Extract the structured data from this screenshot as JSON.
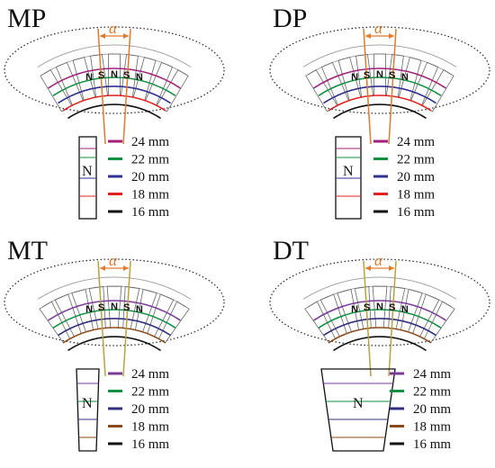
{
  "panels": [
    {
      "id": "mp",
      "title": "MP",
      "alpha": "α",
      "style": "rect",
      "poles": [
        "N",
        "S",
        "N",
        "S",
        "N"
      ],
      "magnet_label": "N",
      "legend": [
        {
          "label": "24 mm",
          "color": "#a0207a"
        },
        {
          "label": "22 mm",
          "color": "#109040"
        },
        {
          "label": "20 mm",
          "color": "#303090"
        },
        {
          "label": "18 mm",
          "color": "#e02020"
        },
        {
          "label": "16 mm",
          "color": "#111111"
        }
      ]
    },
    {
      "id": "dp",
      "title": "DP",
      "alpha": "α",
      "style": "rect-offset",
      "poles": [
        "N",
        "S",
        "N",
        "S",
        "N"
      ],
      "magnet_label": "N",
      "legend": [
        {
          "label": "24 mm",
          "color": "#a0207a"
        },
        {
          "label": "22 mm",
          "color": "#109040"
        },
        {
          "label": "20 mm",
          "color": "#303090"
        },
        {
          "label": "18 mm",
          "color": "#e02020"
        },
        {
          "label": "16 mm",
          "color": "#111111"
        }
      ]
    },
    {
      "id": "mt",
      "title": "MT",
      "alpha": "α",
      "style": "trap",
      "poles": [
        "N",
        "S",
        "N",
        "S",
        "N"
      ],
      "magnet_label": "N",
      "legend": [
        {
          "label": "24 mm",
          "color": "#7a3a9a"
        },
        {
          "label": "22 mm",
          "color": "#109040"
        },
        {
          "label": "20 mm",
          "color": "#303080"
        },
        {
          "label": "18 mm",
          "color": "#8a4a18"
        },
        {
          "label": "16 mm",
          "color": "#111111"
        }
      ]
    },
    {
      "id": "dt",
      "title": "DT",
      "alpha": "α",
      "style": "trap-offset",
      "poles": [
        "N",
        "S",
        "N",
        "S",
        "N"
      ],
      "magnet_label": "N",
      "legend": [
        {
          "label": "24 mm",
          "color": "#7a3a9a"
        },
        {
          "label": "22 mm",
          "color": "#109040"
        },
        {
          "label": "20 mm",
          "color": "#303080"
        },
        {
          "label": "18 mm",
          "color": "#8a4a18"
        },
        {
          "label": "16 mm",
          "color": "#111111"
        }
      ]
    }
  ],
  "colors": {
    "alpha_marker": "#e07a2c",
    "slot_lines_trap": "#b8a23a",
    "ellipse": "#222222",
    "outline": "#999999"
  }
}
